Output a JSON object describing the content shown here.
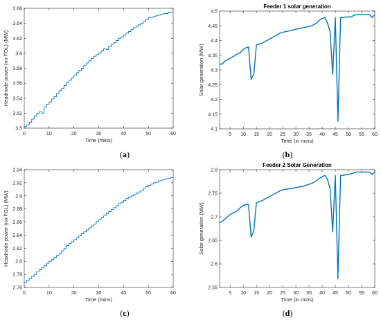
{
  "panels": [
    {
      "caption": "a"
    },
    {
      "caption": "b"
    },
    {
      "caption": "c"
    },
    {
      "caption": "d"
    }
  ],
  "chart_data": [
    {
      "type": "line",
      "title": "",
      "xlabel": "Time (mins)",
      "ylabel": "Headnode power (no FOL) (MW)",
      "xlim": [
        0,
        60
      ],
      "ylim": [
        3.5,
        3.66
      ],
      "xticks": [
        0,
        10,
        20,
        30,
        40,
        50,
        60
      ],
      "yticks": [
        3.5,
        3.52,
        3.54,
        3.56,
        3.58,
        3.6,
        3.62,
        3.64,
        3.66
      ],
      "ytick_decimals": 2,
      "step": true,
      "grid": false,
      "color": "#0072BD",
      "x": [
        0,
        1,
        2,
        3,
        4,
        5,
        6,
        7,
        8,
        9,
        10,
        11,
        12,
        13,
        14,
        15,
        16,
        17,
        18,
        19,
        20,
        21,
        22,
        23,
        24,
        25,
        26,
        27,
        28,
        29,
        30,
        31,
        32,
        33,
        34,
        35,
        36,
        37,
        38,
        39,
        40,
        41,
        42,
        43,
        44,
        45,
        46,
        47,
        48,
        49,
        50,
        51,
        52,
        53,
        54,
        55,
        56,
        57,
        58,
        59,
        60
      ],
      "y": [
        3.502,
        3.504,
        3.508,
        3.512,
        3.516,
        3.52,
        3.522,
        3.52,
        3.528,
        3.532,
        3.535,
        3.539,
        3.542,
        3.546,
        3.55,
        3.553,
        3.557,
        3.561,
        3.564,
        3.567,
        3.57,
        3.574,
        3.577,
        3.58,
        3.584,
        3.587,
        3.59,
        3.593,
        3.596,
        3.598,
        3.6,
        3.603,
        3.606,
        3.605,
        3.609,
        3.612,
        3.614,
        3.617,
        3.62,
        3.622,
        3.624,
        3.627,
        3.629,
        3.632,
        3.634,
        3.636,
        3.638,
        3.64,
        3.642,
        3.645,
        3.648,
        3.648,
        3.649,
        3.65,
        3.651,
        3.652,
        3.653,
        3.653,
        3.654,
        3.655,
        3.655
      ]
    },
    {
      "type": "line",
      "title": "Feeder 1 solar generation",
      "xlabel": "Time (in mins)",
      "ylabel": "Solar generation (MW)",
      "xlim": [
        1,
        60
      ],
      "ylim": [
        4.1,
        4.5
      ],
      "xticks": [
        5,
        10,
        15,
        20,
        25,
        30,
        35,
        40,
        45,
        50,
        55,
        60
      ],
      "yticks": [
        4.1,
        4.15,
        4.2,
        4.25,
        4.3,
        4.35,
        4.4,
        4.45,
        4.5
      ],
      "ytick_decimals": 2,
      "step": false,
      "grid": false,
      "color": "#0072BD",
      "x": [
        1,
        2,
        3,
        4,
        5,
        6,
        7,
        8,
        9,
        10,
        11,
        12,
        13,
        14,
        15,
        16,
        17,
        18,
        19,
        20,
        21,
        22,
        23,
        24,
        25,
        26,
        27,
        28,
        29,
        30,
        31,
        32,
        33,
        34,
        35,
        36,
        37,
        38,
        39,
        40,
        41,
        42,
        43,
        44,
        45,
        46,
        47,
        48,
        49,
        50,
        51,
        52,
        53,
        54,
        55,
        56,
        57,
        58,
        59,
        60
      ],
      "y": [
        4.32,
        4.32,
        4.33,
        4.335,
        4.34,
        4.345,
        4.35,
        4.355,
        4.36,
        4.37,
        4.375,
        4.378,
        4.268,
        4.285,
        4.385,
        4.388,
        4.39,
        4.395,
        4.4,
        4.405,
        4.41,
        4.415,
        4.42,
        4.425,
        4.428,
        4.43,
        4.432,
        4.434,
        4.436,
        4.438,
        4.44,
        4.442,
        4.444,
        4.446,
        4.448,
        4.45,
        4.455,
        4.46,
        4.47,
        4.475,
        4.478,
        4.46,
        4.43,
        4.285,
        4.478,
        4.125,
        4.478,
        4.478,
        4.48,
        4.48,
        4.48,
        4.485,
        4.488,
        4.488,
        4.488,
        4.488,
        4.488,
        4.488,
        4.478,
        4.488
      ]
    },
    {
      "type": "line",
      "title": "",
      "xlabel": "Time (mins)",
      "ylabel": "Headnode power (no FOL) (MW)",
      "xlim": [
        0,
        60
      ],
      "ylim": [
        2.76,
        2.94
      ],
      "xticks": [
        0,
        10,
        20,
        30,
        40,
        50,
        60
      ],
      "yticks": [
        2.76,
        2.78,
        2.8,
        2.82,
        2.84,
        2.86,
        2.88,
        2.9,
        2.92,
        2.94
      ],
      "ytick_decimals": 2,
      "step": true,
      "grid": false,
      "color": "#0072BD",
      "x": [
        0,
        1,
        2,
        3,
        4,
        5,
        6,
        7,
        8,
        9,
        10,
        11,
        12,
        13,
        14,
        15,
        16,
        17,
        18,
        19,
        20,
        21,
        22,
        23,
        24,
        25,
        26,
        27,
        28,
        29,
        30,
        31,
        32,
        33,
        34,
        35,
        36,
        37,
        38,
        39,
        40,
        41,
        42,
        43,
        44,
        45,
        46,
        47,
        48,
        49,
        50,
        51,
        52,
        53,
        54,
        55,
        56,
        57,
        58,
        59,
        60
      ],
      "y": [
        2.768,
        2.771,
        2.774,
        2.777,
        2.78,
        2.784,
        2.787,
        2.79,
        2.793,
        2.797,
        2.8,
        2.803,
        2.806,
        2.809,
        2.812,
        2.816,
        2.82,
        2.824,
        2.827,
        2.83,
        2.833,
        2.836,
        2.839,
        2.842,
        2.845,
        2.848,
        2.851,
        2.854,
        2.857,
        2.861,
        2.864,
        2.867,
        2.87,
        2.873,
        2.876,
        2.879,
        2.882,
        2.885,
        2.888,
        2.89,
        2.893,
        2.896,
        2.898,
        2.9,
        2.902,
        2.904,
        2.906,
        2.908,
        2.912,
        2.914,
        2.916,
        2.918,
        2.92,
        2.921,
        2.923,
        2.924,
        2.925,
        2.926,
        2.927,
        2.928,
        2.929
      ]
    },
    {
      "type": "line",
      "title": "Feeder 2 Solar Generation",
      "xlabel": "Time (in mins)",
      "ylabel": "Solar generation (MW)",
      "xlim": [
        1,
        60
      ],
      "ylim": [
        2.55,
        2.8
      ],
      "xticks": [
        5,
        10,
        15,
        20,
        25,
        30,
        35,
        40,
        45,
        50,
        55,
        60
      ],
      "yticks": [
        2.55,
        2.6,
        2.65,
        2.7,
        2.75,
        2.8
      ],
      "ytick_decimals": 2,
      "step": false,
      "grid": false,
      "color": "#0072BD",
      "x": [
        1,
        2,
        3,
        4,
        5,
        6,
        7,
        8,
        9,
        10,
        11,
        12,
        13,
        14,
        15,
        16,
        17,
        18,
        19,
        20,
        21,
        22,
        23,
        24,
        25,
        26,
        27,
        28,
        29,
        30,
        31,
        32,
        33,
        34,
        35,
        36,
        37,
        38,
        39,
        40,
        41,
        42,
        43,
        44,
        45,
        46,
        47,
        48,
        49,
        50,
        51,
        52,
        53,
        54,
        55,
        56,
        57,
        58,
        59,
        60
      ],
      "y": [
        2.688,
        2.69,
        2.695,
        2.7,
        2.705,
        2.708,
        2.71,
        2.715,
        2.72,
        2.724,
        2.726,
        2.726,
        2.657,
        2.67,
        2.73,
        2.732,
        2.734,
        2.737,
        2.74,
        2.743,
        2.746,
        2.749,
        2.752,
        2.755,
        2.757,
        2.758,
        2.759,
        2.76,
        2.761,
        2.762,
        2.763,
        2.764,
        2.765,
        2.767,
        2.769,
        2.771,
        2.774,
        2.777,
        2.782,
        2.785,
        2.788,
        2.78,
        2.76,
        2.668,
        2.788,
        2.568,
        2.788,
        2.788,
        2.789,
        2.79,
        2.791,
        2.793,
        2.795,
        2.795,
        2.795,
        2.795,
        2.795,
        2.795,
        2.79,
        2.795
      ]
    }
  ]
}
